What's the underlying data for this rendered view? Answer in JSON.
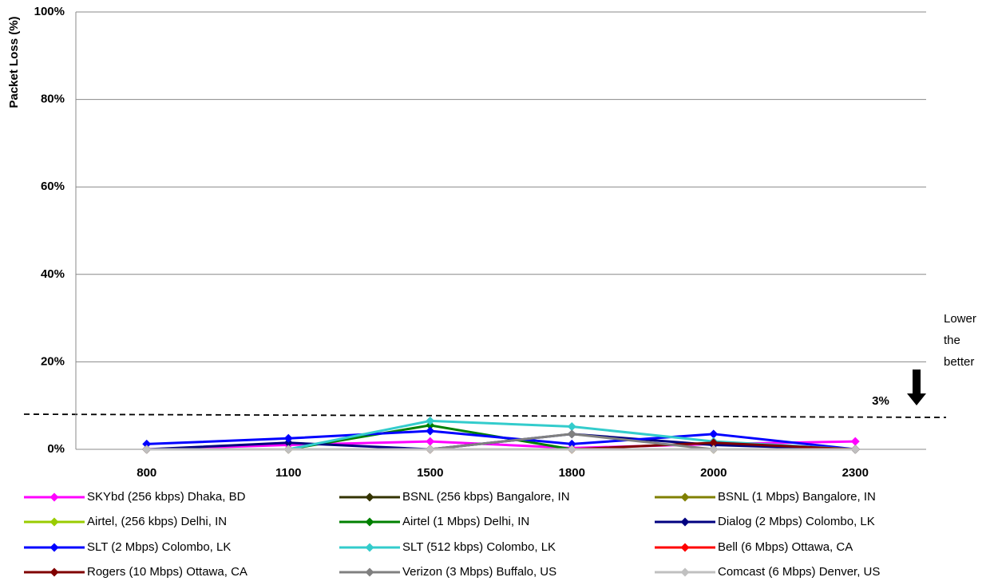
{
  "chart_data": {
    "type": "line",
    "y_label": "Packet Loss (%)",
    "categories": [
      "800",
      "1100",
      "1500",
      "1800",
      "2000",
      "2300"
    ],
    "ylim": [
      0,
      100
    ],
    "yticks": [
      {
        "value": 0,
        "label": "0%"
      },
      {
        "value": 20,
        "label": "20%"
      },
      {
        "value": 40,
        "label": "40%"
      },
      {
        "value": 60,
        "label": "60%"
      },
      {
        "value": 80,
        "label": "80%"
      },
      {
        "value": 100,
        "label": "100%"
      }
    ],
    "grid": true,
    "annotation_lines": [
      "Lower",
      "the",
      "better"
    ],
    "threshold_label": "3%",
    "series": [
      {
        "name": "SKYbd (256 kbps) Dhaka, BD",
        "color": "#ff00ff",
        "values": [
          0,
          1,
          1.8,
          0.3,
          1.2,
          1.8
        ]
      },
      {
        "name": "BSNL (256 kbps) Bangalore, IN",
        "color": "#333300",
        "values": [
          0,
          0,
          0,
          0,
          0,
          0
        ]
      },
      {
        "name": "BSNL (1 Mbps) Bangalore, IN",
        "color": "#808000",
        "values": [
          0,
          0,
          0,
          0,
          0,
          0
        ]
      },
      {
        "name": "Airtel, (256 kbps) Delhi, IN",
        "color": "#99cc00",
        "values": [
          0,
          0,
          0,
          0,
          0,
          0
        ]
      },
      {
        "name": "Airtel (1 Mbps) Delhi, IN",
        "color": "#008000",
        "values": [
          0,
          0,
          5.5,
          0,
          0,
          0
        ]
      },
      {
        "name": "Dialog (2 Mbps) Colombo, LK",
        "color": "#000080",
        "values": [
          0,
          1.5,
          0,
          3.5,
          1,
          0
        ]
      },
      {
        "name": "SLT (2 Mbps) Colombo, LK",
        "color": "#0000ff",
        "values": [
          1.2,
          2.5,
          4.2,
          1.2,
          3.5,
          0
        ]
      },
      {
        "name": "SLT (512 kbps) Colombo, LK",
        "color": "#33cccc",
        "values": [
          0,
          0,
          6.5,
          5.2,
          1.8,
          0
        ]
      },
      {
        "name": "Bell (6 Mbps) Ottawa, CA",
        "color": "#ff0000",
        "values": [
          0,
          0,
          0,
          0,
          0,
          0
        ]
      },
      {
        "name": "Rogers (10 Mbps) Ottawa, CA",
        "color": "#800000",
        "values": [
          0,
          0,
          0,
          0,
          1.5,
          0
        ]
      },
      {
        "name": "Verizon (3 Mbps) Buffalo, US",
        "color": "#808080",
        "values": [
          0,
          0,
          0,
          3.5,
          0,
          0
        ]
      },
      {
        "name": "Comcast (6 Mbps) Denver, US",
        "color": "#c0c0c0",
        "values": [
          0,
          0,
          0,
          0,
          0,
          0
        ]
      }
    ]
  }
}
